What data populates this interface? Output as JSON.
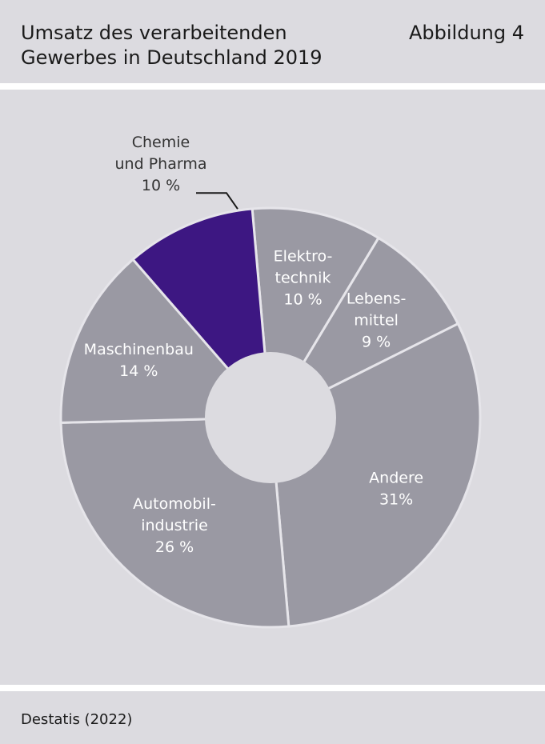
{
  "header": {
    "title": "Umsatz des verarbeitenden\nGewerbes in Deutschland 2019",
    "figure_label": "Abbildung 4"
  },
  "footer": {
    "source": "Destatis (2022)"
  },
  "colors": {
    "panel": "#dcdbe0",
    "slice": "#9a99a3",
    "highlight": "#3d1782",
    "separator": "#e6e5ea",
    "hole": "#dcdbe0",
    "external_label": "#333333"
  },
  "chart_data": {
    "type": "pie",
    "variant": "donut",
    "title": "Umsatz des verarbeitenden Gewerbes in Deutschland 2019",
    "unit": "%",
    "series": [
      {
        "name": "Elektrotechnik",
        "label_lines": [
          "Elektro-",
          "technik",
          "10 %"
        ],
        "value": 10,
        "highlight": false
      },
      {
        "name": "Lebensmittel",
        "label_lines": [
          "Lebens-",
          "mittel",
          "9 %"
        ],
        "value": 9,
        "highlight": false
      },
      {
        "name": "Andere",
        "label_lines": [
          "Andere",
          "31%"
        ],
        "value": 31,
        "highlight": false
      },
      {
        "name": "Automobilindustrie",
        "label_lines": [
          "Automobil-",
          "industrie",
          "26 %"
        ],
        "value": 26,
        "highlight": false
      },
      {
        "name": "Maschinenbau",
        "label_lines": [
          "Maschinenbau",
          "14 %"
        ],
        "value": 14,
        "highlight": false
      },
      {
        "name": "Chemie und Pharma",
        "label_lines": [
          "Chemie",
          "und Pharma",
          "10 %"
        ],
        "value": 10,
        "highlight": true,
        "label_outside": true
      }
    ],
    "legend": "none"
  }
}
